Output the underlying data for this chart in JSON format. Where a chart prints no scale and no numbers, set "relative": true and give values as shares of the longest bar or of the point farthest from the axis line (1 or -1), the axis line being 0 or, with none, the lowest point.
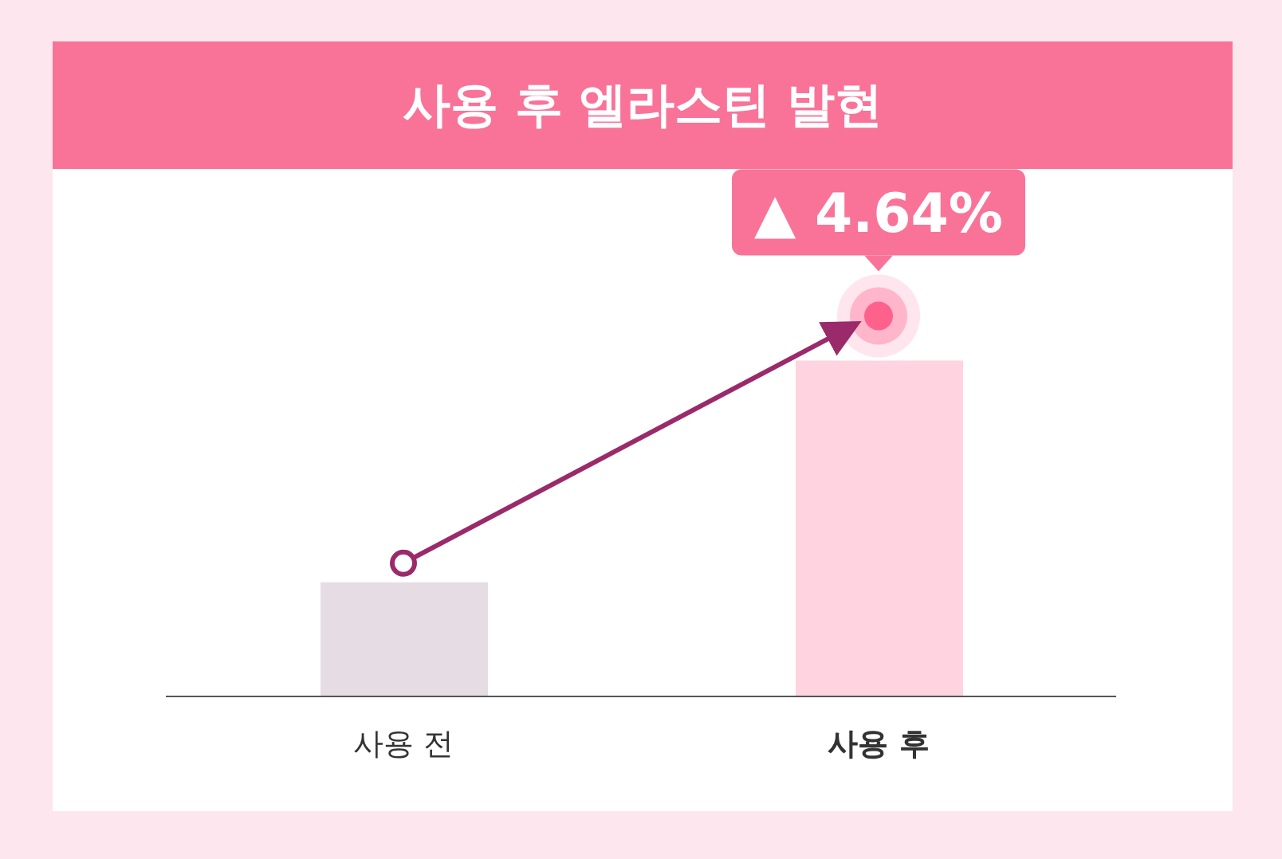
{
  "chart_data": {
    "type": "bar",
    "title": "사용 후 엘라스틴 발현",
    "categories": [
      "사용 전",
      "사용 후"
    ],
    "values": [
      0.34,
      1
    ],
    "colors": [
      "#e5dde3",
      "#ffd3df"
    ],
    "relative": true,
    "annotations": [
      {
        "text": "▲ 4.64%",
        "x": "사용 후",
        "y": 1
      }
    ]
  }
}
